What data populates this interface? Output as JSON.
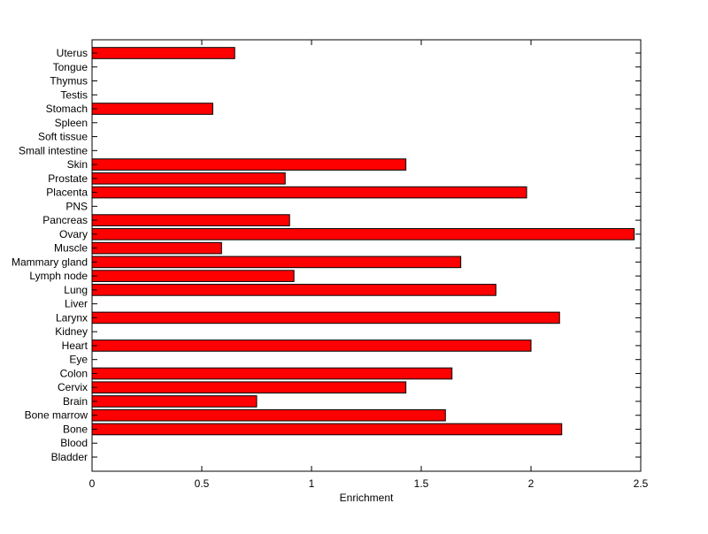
{
  "chart_data": {
    "type": "bar",
    "orientation": "horizontal",
    "xlabel": "Enrichment",
    "ylabel": "",
    "title": "",
    "xlim": [
      0,
      2.5
    ],
    "xticks": [
      "0",
      "0.5",
      "1",
      "1.5",
      "2",
      "2.5"
    ],
    "grid": false,
    "bar_color": "#ff0000",
    "categories": [
      "Bladder",
      "Blood",
      "Bone",
      "Bone marrow",
      "Brain",
      "Cervix",
      "Colon",
      "Eye",
      "Heart",
      "Kidney",
      "Larynx",
      "Liver",
      "Lung",
      "Lymph node",
      "Mammary gland",
      "Muscle",
      "Ovary",
      "Pancreas",
      "PNS",
      "Placenta",
      "Prostate",
      "Skin",
      "Small intestine",
      "Soft tissue",
      "Spleen",
      "Stomach",
      "Testis",
      "Thymus",
      "Tongue",
      "Uterus"
    ],
    "values": [
      0,
      0,
      2.14,
      1.61,
      0.75,
      1.43,
      1.64,
      0,
      2.0,
      0,
      2.13,
      0,
      1.84,
      0.92,
      1.68,
      0.59,
      2.47,
      0.9,
      0,
      1.98,
      0.88,
      1.43,
      0,
      0,
      0,
      0.55,
      0,
      0,
      0,
      0.65
    ]
  }
}
